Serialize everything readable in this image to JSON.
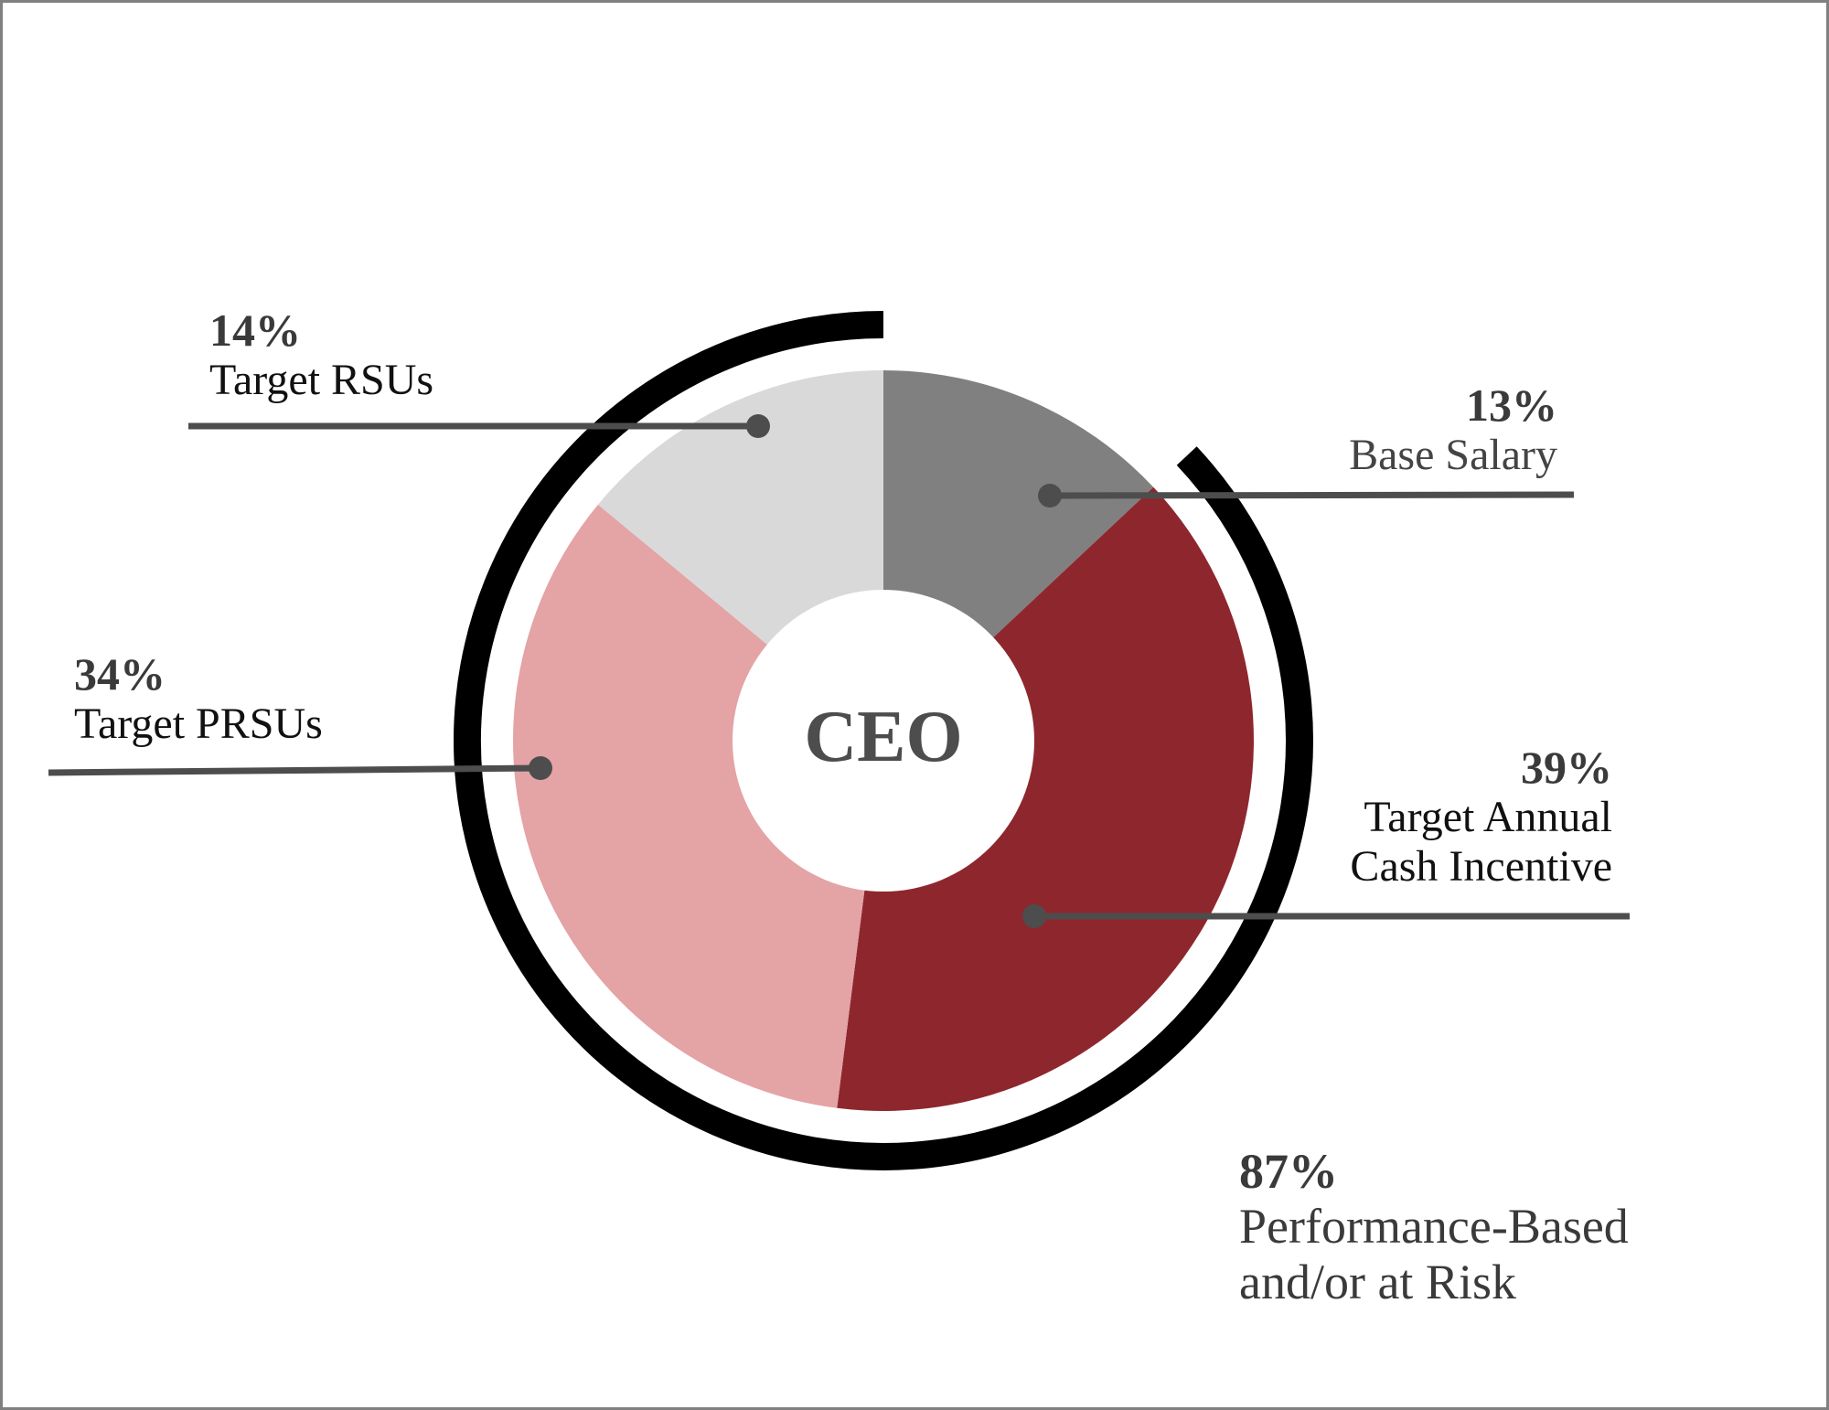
{
  "chart_data": {
    "type": "pie",
    "subtype": "donut",
    "center_label": "CEO",
    "slices": [
      {
        "label": "Base Salary",
        "value": 13,
        "color": "#808080"
      },
      {
        "label": "Target Annual Cash Incentive",
        "value": 39,
        "color": "#8E272D"
      },
      {
        "label": "Target PRSUs",
        "value": 34,
        "color": "#E4A3A5"
      },
      {
        "label": "Target RSUs",
        "value": 14,
        "color": "#D9D9D9"
      }
    ],
    "annotation": {
      "value": 87,
      "label": "Performance-Based and/or at Risk",
      "arc_color": "#000000"
    }
  },
  "labels": {
    "rsu": {
      "pct": "14%",
      "name": "Target RSUs"
    },
    "salary": {
      "pct": "13%",
      "name": "Base Salary"
    },
    "prsu": {
      "pct": "34%",
      "name": "Target PRSUs"
    },
    "cash": {
      "pct": "39%",
      "name1": "Target Annual",
      "name2": "Cash Incentive"
    },
    "perf": {
      "pct": "87%",
      "name1": "Performance-Based",
      "name2": "and/or at Risk"
    }
  },
  "center": {
    "text": "CEO"
  },
  "colors": {
    "leader": "#4d4d4d",
    "border": "#808080"
  }
}
